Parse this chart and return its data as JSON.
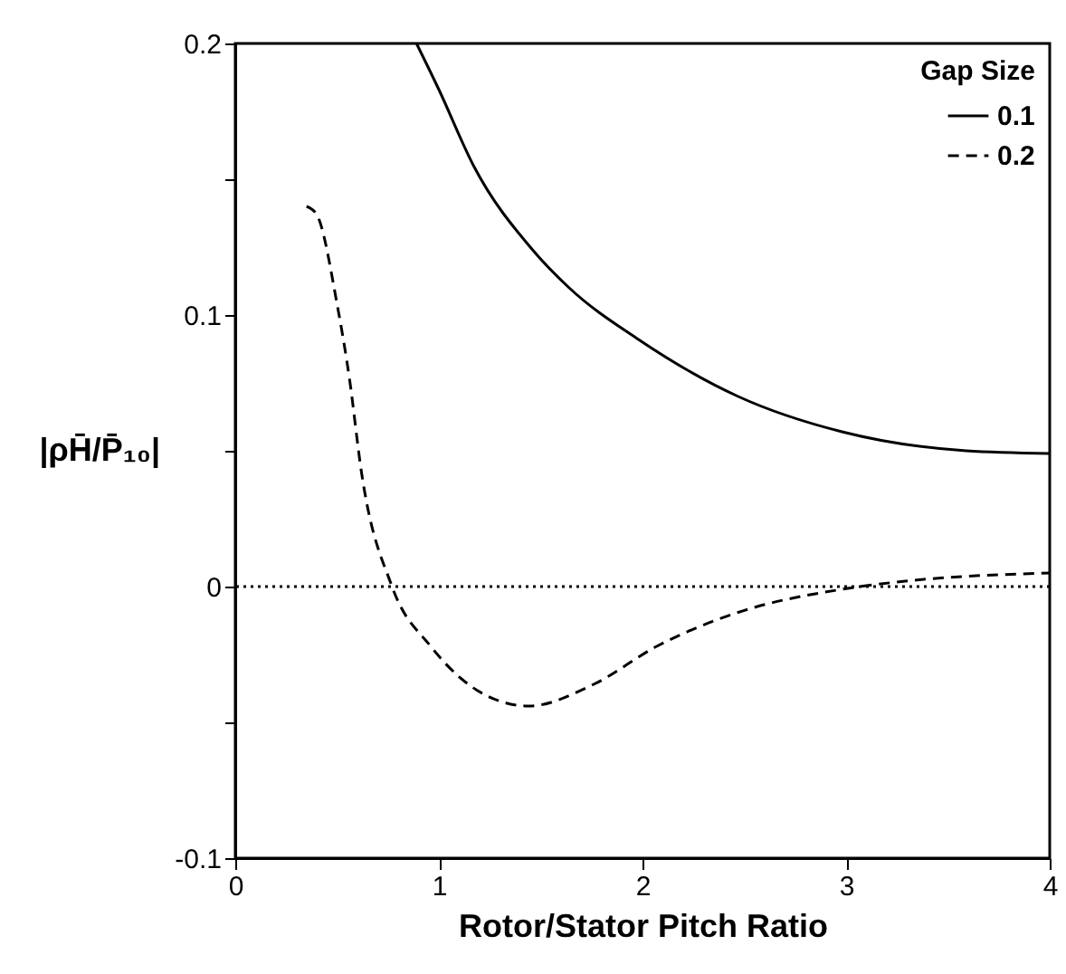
{
  "chart_data": {
    "type": "line",
    "xlabel": "Rotor/Stator Pitch Ratio",
    "ylabel": "|ρH̄/P̄₁₀|",
    "legend_title": "Gap Size",
    "legend": "top right",
    "grid": false,
    "xlim": [
      0,
      4
    ],
    "xticks": [
      0,
      1,
      2,
      3,
      4
    ],
    "ylim": [
      -0.1,
      0.2
    ],
    "yticks": [
      -0.1,
      {
        "value": -0.05,
        "label": null
      },
      0,
      {
        "value": 0.05,
        "label": null
      },
      0.1,
      {
        "value": 0.15,
        "label": null
      },
      0.2
    ],
    "ref_lines": [
      {
        "axis": "y",
        "value": 0,
        "line_style": "dotted",
        "color": "#000000"
      }
    ],
    "series": [
      {
        "name": "0.1",
        "color": "#000000",
        "line_style": "solid",
        "x": [
          0.89,
          1.0,
          1.17,
          1.46,
          1.64,
          1.98,
          2.47,
          2.98,
          3.59,
          4.0
        ],
        "values": [
          0.2,
          0.183,
          0.155,
          0.124,
          0.11,
          0.091,
          0.07,
          0.057,
          0.05,
          0.049
        ]
      },
      {
        "name": "0.2",
        "color": "#000000",
        "line_style": "dashed",
        "x": [
          0.35,
          0.4,
          0.5,
          0.56,
          0.62,
          0.77,
          0.96,
          1.23,
          1.44,
          1.76,
          2.07,
          2.47,
          2.98,
          3.29,
          4.0
        ],
        "values": [
          0.14,
          0.137,
          0.104,
          0.077,
          0.042,
          0.0,
          -0.022,
          -0.04,
          -0.044,
          -0.036,
          -0.022,
          -0.0095,
          -0.001,
          0.002,
          0.005
        ]
      }
    ]
  }
}
